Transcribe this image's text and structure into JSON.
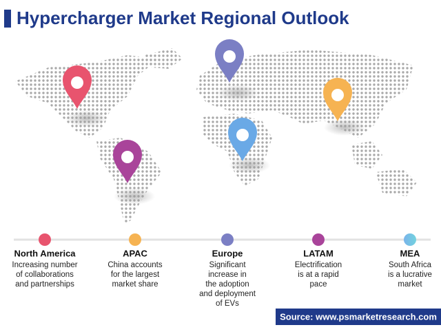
{
  "header": {
    "title": "Hypercharger Market Regional Outlook"
  },
  "regions": [
    {
      "name": "North America",
      "description": [
        "Increasing number",
        "of collaborations",
        "and partnerships"
      ]
    },
    {
      "name": "APAC",
      "description": [
        "China accounts",
        "for the largest",
        "market share"
      ]
    },
    {
      "name": "Europe",
      "description": [
        "Significant",
        "increase in",
        "the adoption",
        "and deployment",
        "of EVs"
      ]
    },
    {
      "name": "LATAM",
      "description": [
        "Electrification",
        "is at a rapid",
        "pace"
      ]
    },
    {
      "name": "MEA",
      "description": [
        "South Africa",
        "is a lucrative",
        "market"
      ]
    }
  ],
  "footer": {
    "source": "Source: www.psmarketresearch.com"
  }
}
